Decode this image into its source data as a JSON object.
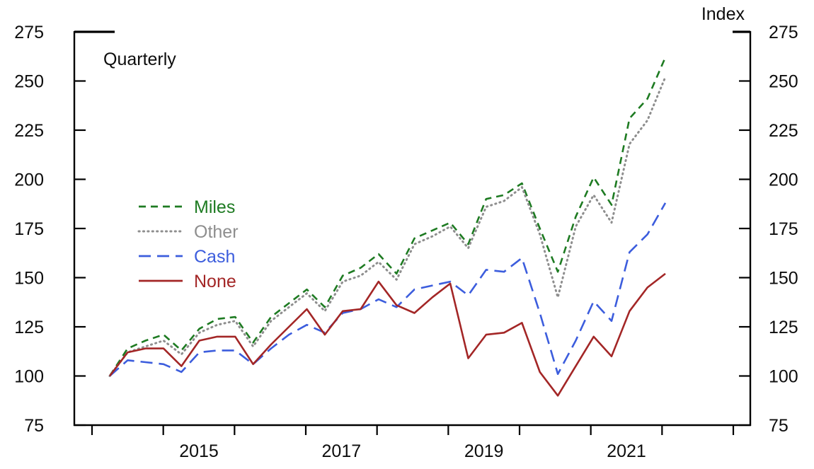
{
  "chart_data": {
    "type": "line",
    "title": "",
    "frequency_label": "Quarterly",
    "right_axis_title": "Index",
    "grid": false,
    "legend_position": "inside upper-left",
    "ylim": [
      75,
      275
    ],
    "yticks": [
      75,
      100,
      125,
      150,
      175,
      200,
      225,
      250,
      275
    ],
    "xtick_year_labels": [
      "2015",
      "2017",
      "2019",
      "2021"
    ],
    "axis_color": "#000000",
    "x_quarters": [
      "2014Q1",
      "2014Q2",
      "2014Q3",
      "2014Q4",
      "2015Q1",
      "2015Q2",
      "2015Q3",
      "2015Q4",
      "2016Q1",
      "2016Q2",
      "2016Q3",
      "2016Q4",
      "2017Q1",
      "2017Q2",
      "2017Q3",
      "2017Q4",
      "2018Q1",
      "2018Q2",
      "2018Q3",
      "2018Q4",
      "2019Q1",
      "2019Q2",
      "2019Q3",
      "2019Q4",
      "2020Q1",
      "2020Q2",
      "2020Q3",
      "2020Q4",
      "2021Q1",
      "2021Q2",
      "2021Q3",
      "2021Q4"
    ],
    "series": [
      {
        "name": "Miles",
        "color": "#1e7b22",
        "dash": "short-dash",
        "values": [
          100,
          114,
          118,
          121,
          113,
          124,
          129,
          130,
          117,
          130,
          137,
          144,
          135,
          151,
          155,
          162,
          152,
          170,
          174,
          178,
          167,
          190,
          192,
          198,
          175,
          153,
          181,
          201,
          187,
          231,
          241,
          262
        ]
      },
      {
        "name": "Other",
        "color": "#8e8e8e",
        "dash": "dot",
        "values": [
          100,
          112,
          115,
          118,
          111,
          122,
          126,
          128,
          115,
          128,
          135,
          142,
          133,
          148,
          151,
          158,
          149,
          167,
          171,
          176,
          165,
          186,
          189,
          196,
          172,
          140,
          176,
          192,
          178,
          218,
          230,
          252
        ]
      },
      {
        "name": "Cash",
        "color": "#3c5ddd",
        "dash": "long-dash",
        "values": [
          100,
          108,
          107,
          106,
          102,
          112,
          113,
          113,
          106,
          114,
          121,
          126,
          122,
          132,
          134,
          139,
          135,
          144,
          146,
          148,
          141,
          154,
          153,
          160,
          132,
          101,
          118,
          138,
          128,
          163,
          172,
          188
        ]
      },
      {
        "name": "None",
        "color": "#a32626",
        "dash": "solid",
        "values": [
          100,
          112,
          114,
          114,
          105,
          118,
          120,
          120,
          106,
          116,
          125,
          134,
          121,
          133,
          134,
          148,
          136,
          132,
          140,
          147,
          109,
          121,
          122,
          127,
          102,
          90,
          105,
          120,
          110,
          133,
          145,
          152
        ]
      }
    ]
  }
}
